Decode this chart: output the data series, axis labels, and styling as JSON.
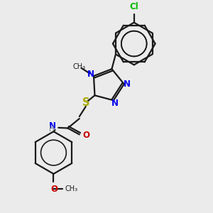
{
  "bg_color": "#ebebeb",
  "bond_color": "#1a1a1a",
  "N_color": "#0000ee",
  "S_color": "#aaaa00",
  "O_color": "#cc0000",
  "Cl_color": "#00bb00",
  "H_color": "#708090",
  "line_width": 1.6,
  "font_size": 8.5,
  "fig_size": [
    3.0,
    3.0
  ],
  "dpi": 100,
  "xlim": [
    0,
    10
  ],
  "ylim": [
    0,
    10
  ]
}
